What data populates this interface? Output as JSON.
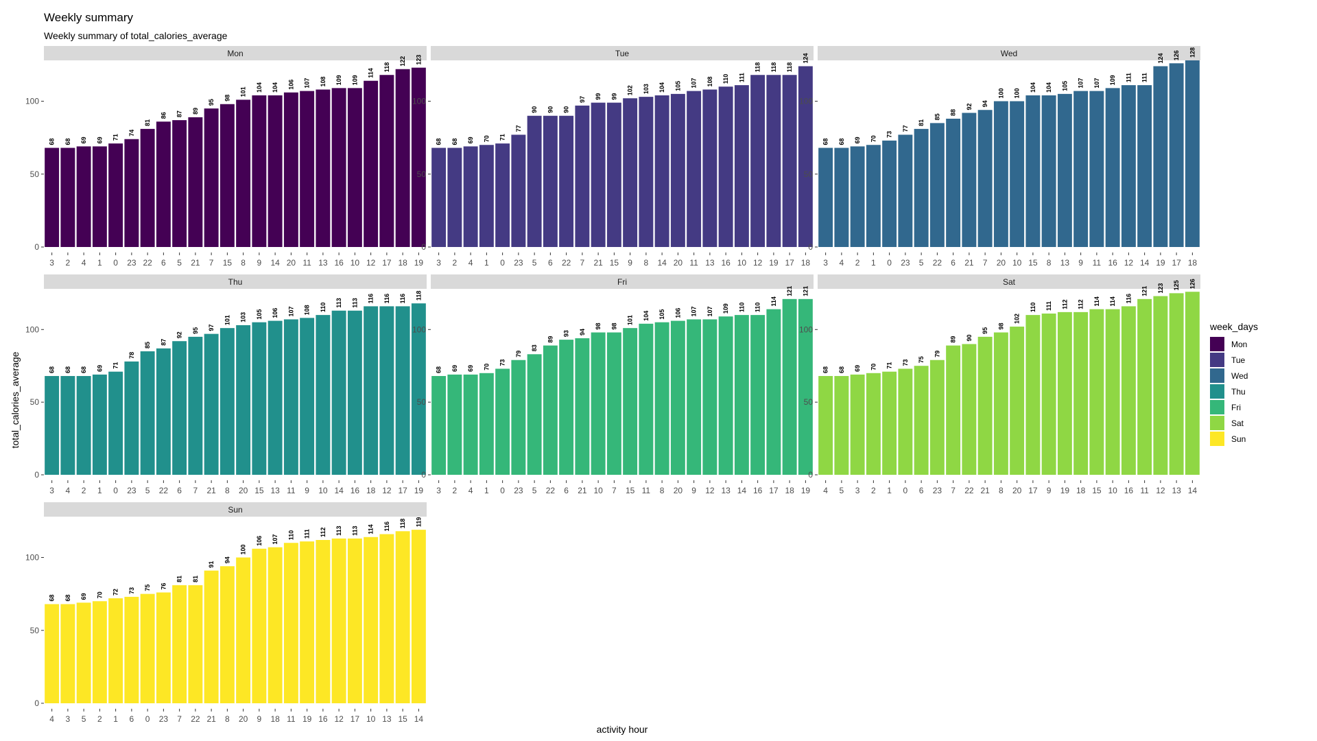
{
  "chart_data": {
    "type": "bar",
    "title": "Weekly summary",
    "subtitle": "Weekly summary of total_calories_average",
    "xlabel": "activity hour",
    "ylabel": "total_calories_average",
    "ylim": [
      0,
      128
    ],
    "yticks": [
      0,
      50,
      100
    ],
    "legend": {
      "title": "week_days",
      "placement": "right",
      "items": [
        {
          "label": "Mon",
          "color": "#440154"
        },
        {
          "label": "Tue",
          "color": "#443A83"
        },
        {
          "label": "Wed",
          "color": "#31688E"
        },
        {
          "label": "Thu",
          "color": "#21908C"
        },
        {
          "label": "Fri",
          "color": "#35B779"
        },
        {
          "label": "Sat",
          "color": "#8FD744"
        },
        {
          "label": "Sun",
          "color": "#FDE725"
        }
      ]
    },
    "facets": [
      {
        "name": "Mon",
        "color": "#440154",
        "categories": [
          "3",
          "2",
          "4",
          "1",
          "0",
          "23",
          "22",
          "6",
          "5",
          "21",
          "7",
          "15",
          "8",
          "9",
          "14",
          "20",
          "11",
          "13",
          "16",
          "10",
          "12",
          "17",
          "18",
          "19"
        ],
        "values": [
          68,
          68,
          69,
          69,
          71,
          74,
          81,
          86,
          87,
          89,
          95,
          98,
          101,
          104,
          104,
          106,
          107,
          108,
          109,
          109,
          114,
          118,
          122,
          123
        ]
      },
      {
        "name": "Tue",
        "color": "#443A83",
        "categories": [
          "3",
          "2",
          "4",
          "1",
          "0",
          "23",
          "5",
          "6",
          "22",
          "7",
          "21",
          "15",
          "9",
          "8",
          "14",
          "20",
          "11",
          "13",
          "16",
          "10",
          "12",
          "19",
          "17",
          "18"
        ],
        "values": [
          68,
          68,
          69,
          70,
          71,
          77,
          90,
          90,
          90,
          97,
          99,
          99,
          102,
          103,
          104,
          105,
          107,
          108,
          110,
          111,
          118,
          118,
          118,
          124
        ]
      },
      {
        "name": "Wed",
        "color": "#31688E",
        "categories": [
          "3",
          "4",
          "2",
          "1",
          "0",
          "23",
          "5",
          "22",
          "6",
          "21",
          "7",
          "20",
          "10",
          "15",
          "8",
          "13",
          "9",
          "11",
          "16",
          "12",
          "14",
          "19",
          "17",
          "18"
        ],
        "values": [
          68,
          68,
          69,
          70,
          73,
          77,
          81,
          85,
          88,
          92,
          94,
          100,
          100,
          104,
          104,
          105,
          107,
          107,
          109,
          111,
          111,
          124,
          126,
          128
        ]
      },
      {
        "name": "Thu",
        "color": "#21908C",
        "categories": [
          "3",
          "4",
          "2",
          "1",
          "0",
          "23",
          "5",
          "22",
          "6",
          "7",
          "21",
          "8",
          "20",
          "15",
          "13",
          "11",
          "9",
          "10",
          "14",
          "16",
          "18",
          "12",
          "17",
          "19"
        ],
        "values": [
          68,
          68,
          68,
          69,
          71,
          78,
          85,
          87,
          92,
          95,
          97,
          101,
          103,
          105,
          106,
          107,
          108,
          110,
          113,
          113,
          116,
          116,
          116,
          118
        ]
      },
      {
        "name": "Fri",
        "color": "#35B779",
        "categories": [
          "3",
          "2",
          "4",
          "1",
          "0",
          "23",
          "5",
          "22",
          "6",
          "21",
          "10",
          "7",
          "15",
          "11",
          "8",
          "20",
          "9",
          "12",
          "13",
          "14",
          "16",
          "17",
          "18",
          "19"
        ],
        "values": [
          68,
          69,
          69,
          70,
          73,
          79,
          83,
          89,
          93,
          94,
          98,
          98,
          101,
          104,
          105,
          106,
          107,
          107,
          109,
          110,
          110,
          114,
          121,
          121
        ]
      },
      {
        "name": "Sat",
        "color": "#8FD744",
        "categories": [
          "4",
          "5",
          "3",
          "2",
          "1",
          "0",
          "6",
          "23",
          "7",
          "22",
          "21",
          "8",
          "20",
          "17",
          "9",
          "19",
          "18",
          "15",
          "10",
          "16",
          "11",
          "12",
          "13",
          "14"
        ],
        "values": [
          68,
          68,
          69,
          70,
          71,
          73,
          75,
          79,
          89,
          90,
          95,
          98,
          102,
          110,
          111,
          112,
          112,
          114,
          114,
          116,
          121,
          123,
          125,
          126
        ]
      },
      {
        "name": "Sun",
        "color": "#FDE725",
        "categories": [
          "4",
          "3",
          "5",
          "2",
          "1",
          "6",
          "0",
          "23",
          "7",
          "22",
          "21",
          "8",
          "20",
          "9",
          "18",
          "11",
          "19",
          "16",
          "12",
          "17",
          "10",
          "13",
          "15",
          "14"
        ],
        "values": [
          68,
          68,
          69,
          70,
          72,
          73,
          75,
          76,
          81,
          81,
          91,
          94,
          100,
          106,
          107,
          110,
          111,
          112,
          113,
          113,
          114,
          116,
          118,
          119
        ]
      }
    ]
  }
}
